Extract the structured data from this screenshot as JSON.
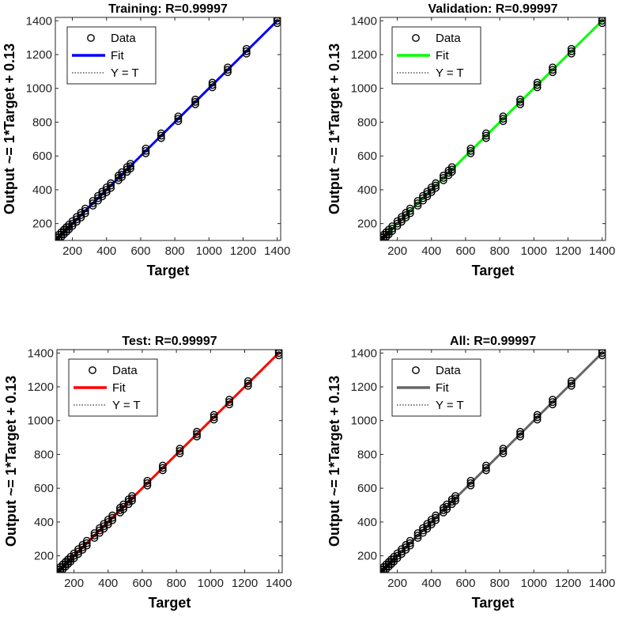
{
  "chart_data": [
    {
      "type": "scatter",
      "title": "Training: R=0.99997",
      "xlabel": "Target",
      "ylabel": "Output ~= 1*Target + 0.13",
      "xlim": [
        100,
        1420
      ],
      "ylim": [
        100,
        1420
      ],
      "xticks": [
        200,
        400,
        600,
        800,
        1000,
        1200,
        1400
      ],
      "yticks": [
        200,
        400,
        600,
        800,
        1000,
        1200,
        1400
      ],
      "x_tick_labels": [
        "200",
        "400",
        "600",
        "800",
        "1000",
        "1200",
        "1400"
      ],
      "y_tick_labels": [
        "200",
        "400",
        "600",
        "800",
        "1000",
        "1200",
        "1400"
      ],
      "fit": {
        "slope": 1,
        "intercept": 0.13,
        "color": "#0000ff"
      },
      "legend": {
        "placement": "top-left",
        "entries": [
          "Data",
          "Fit",
          "Y = T"
        ]
      },
      "series": [
        {
          "name": "Data",
          "x": [
            105,
            120,
            135,
            150,
            165,
            180,
            200,
            225,
            250,
            275,
            320,
            350,
            375,
            400,
            425,
            470,
            490,
            520,
            540,
            630,
            720,
            820,
            920,
            1020,
            1110,
            1220,
            1400
          ],
          "y": [
            105,
            120,
            135,
            150,
            165,
            180,
            200,
            225,
            250,
            275,
            320,
            350,
            375,
            400,
            425,
            470,
            490,
            520,
            540,
            630,
            720,
            820,
            920,
            1020,
            1110,
            1220,
            1400
          ]
        }
      ]
    },
    {
      "type": "scatter",
      "title": "Validation: R=0.99997",
      "xlabel": "Target",
      "ylabel": "Output ~= 1*Target + 0.13",
      "xlim": [
        100,
        1420
      ],
      "ylim": [
        100,
        1420
      ],
      "xticks": [
        200,
        400,
        600,
        800,
        1000,
        1200,
        1400
      ],
      "yticks": [
        200,
        400,
        600,
        800,
        1000,
        1200,
        1400
      ],
      "x_tick_labels": [
        "200",
        "400",
        "600",
        "800",
        "1000",
        "1200",
        "1400"
      ],
      "y_tick_labels": [
        "200",
        "400",
        "600",
        "800",
        "1000",
        "1200",
        "1400"
      ],
      "fit": {
        "slope": 1,
        "intercept": 0.13,
        "color": "#00ff00"
      },
      "legend": {
        "placement": "top-left",
        "entries": [
          "Data",
          "Fit",
          "Y = T"
        ]
      },
      "series": [
        {
          "name": "Data",
          "x": [
            105,
            120,
            135,
            150,
            170,
            200,
            225,
            250,
            275,
            320,
            350,
            375,
            400,
            425,
            470,
            500,
            520,
            630,
            720,
            820,
            920,
            1020,
            1110,
            1220,
            1400
          ],
          "y": [
            105,
            120,
            135,
            150,
            170,
            200,
            225,
            250,
            275,
            320,
            350,
            375,
            400,
            425,
            470,
            500,
            520,
            630,
            720,
            820,
            920,
            1020,
            1110,
            1220,
            1400
          ]
        }
      ]
    },
    {
      "type": "scatter",
      "title": "Test: R=0.99997",
      "xlabel": "Target",
      "ylabel": "Output ~= 1*Target + 0.13",
      "xlim": [
        100,
        1420
      ],
      "ylim": [
        100,
        1420
      ],
      "xticks": [
        200,
        400,
        600,
        800,
        1000,
        1200,
        1400
      ],
      "yticks": [
        200,
        400,
        600,
        800,
        1000,
        1200,
        1400
      ],
      "x_tick_labels": [
        "200",
        "400",
        "600",
        "800",
        "1000",
        "1200",
        "1400"
      ],
      "y_tick_labels": [
        "200",
        "400",
        "600",
        "800",
        "1000",
        "1200",
        "1400"
      ],
      "fit": {
        "slope": 1,
        "intercept": 0.13,
        "color": "#ff0000"
      },
      "legend": {
        "placement": "top-left",
        "entries": [
          "Data",
          "Fit",
          "Y = T"
        ]
      },
      "series": [
        {
          "name": "Data",
          "x": [
            105,
            120,
            135,
            150,
            165,
            180,
            200,
            225,
            250,
            275,
            320,
            350,
            375,
            400,
            425,
            470,
            490,
            520,
            540,
            630,
            720,
            820,
            920,
            1020,
            1110,
            1220,
            1400
          ],
          "y": [
            105,
            120,
            135,
            150,
            165,
            180,
            200,
            225,
            250,
            275,
            320,
            350,
            375,
            400,
            425,
            470,
            490,
            520,
            540,
            630,
            720,
            820,
            920,
            1020,
            1110,
            1220,
            1400
          ]
        }
      ]
    },
    {
      "type": "scatter",
      "title": "All: R=0.99997",
      "xlabel": "Target",
      "ylabel": "Output ~= 1*Target + 0.13",
      "xlim": [
        100,
        1420
      ],
      "ylim": [
        100,
        1420
      ],
      "xticks": [
        200,
        400,
        600,
        800,
        1000,
        1200,
        1400
      ],
      "yticks": [
        200,
        400,
        600,
        800,
        1000,
        1200,
        1400
      ],
      "x_tick_labels": [
        "200",
        "400",
        "600",
        "800",
        "1000",
        "1200",
        "1400"
      ],
      "y_tick_labels": [
        "200",
        "400",
        "600",
        "800",
        "1000",
        "1200",
        "1400"
      ],
      "fit": {
        "slope": 1,
        "intercept": 0.13,
        "color": "#666666"
      },
      "legend": {
        "placement": "top-left",
        "entries": [
          "Data",
          "Fit",
          "Y = T"
        ]
      },
      "series": [
        {
          "name": "Data",
          "x": [
            105,
            120,
            135,
            150,
            165,
            180,
            200,
            225,
            250,
            275,
            320,
            350,
            375,
            400,
            425,
            470,
            490,
            520,
            540,
            630,
            720,
            820,
            920,
            1020,
            1110,
            1220,
            1400
          ],
          "y": [
            105,
            120,
            135,
            150,
            165,
            180,
            200,
            225,
            250,
            275,
            320,
            350,
            375,
            400,
            425,
            470,
            490,
            520,
            540,
            630,
            720,
            820,
            920,
            1020,
            1110,
            1220,
            1400
          ]
        }
      ]
    }
  ]
}
